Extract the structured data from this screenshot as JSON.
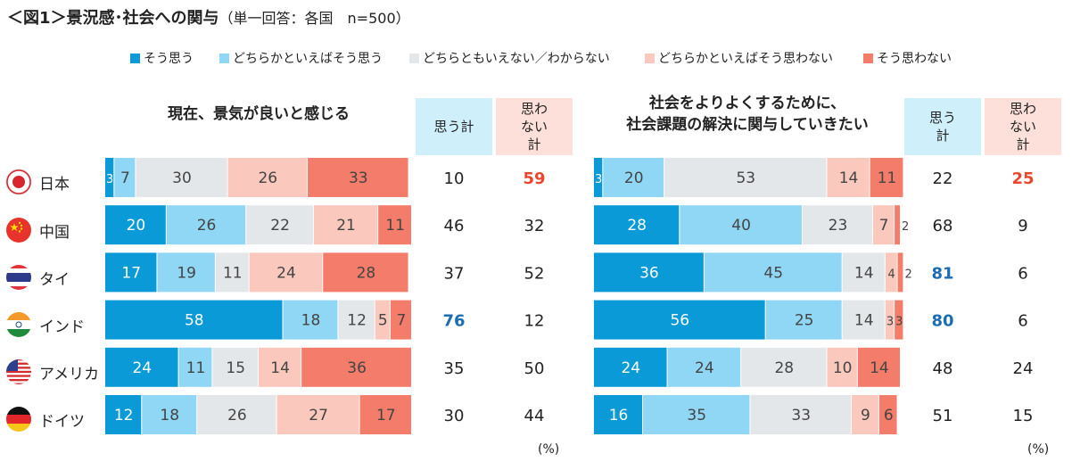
{
  "title": "＜図1＞景況感･社会への関与",
  "subtitle": "（単一回答：各国　n=500）",
  "legend": [
    {
      "label": "そう思う",
      "color": "#0b9ad8"
    },
    {
      "label": "どちらかといえばそう思う",
      "color": "#8fd7f5"
    },
    {
      "label": "どちらともいえない／わからない",
      "color": "#e4e7ea"
    },
    {
      "label": "どちらかといえばそう思わない",
      "color": "#fbc8bd"
    },
    {
      "label": "そう思わない",
      "color": "#f47c6a"
    }
  ],
  "headers": {
    "agree_total": "思う計",
    "disagree_total": "思わない計"
  },
  "unit": "(%)",
  "countries": [
    "日本",
    "中国",
    "タイ",
    "インド",
    "アメリカ",
    "ドイツ"
  ],
  "chart_data": [
    {
      "type": "bar",
      "stacked": true,
      "orientation": "horizontal",
      "title": "現在、景気が良いと感じる",
      "categories": [
        "日本",
        "中国",
        "タイ",
        "インド",
        "アメリカ",
        "ドイツ"
      ],
      "series": [
        {
          "name": "そう思う",
          "values": [
            3,
            20,
            17,
            58,
            24,
            12
          ]
        },
        {
          "name": "どちらかといえばそう思う",
          "values": [
            7,
            26,
            19,
            18,
            11,
            18
          ]
        },
        {
          "name": "どちらともいえない／わからない",
          "values": [
            30,
            22,
            11,
            12,
            15,
            26
          ]
        },
        {
          "name": "どちらかといえばそう思わない",
          "values": [
            26,
            21,
            24,
            5,
            14,
            27
          ]
        },
        {
          "name": "そう思わない",
          "values": [
            33,
            11,
            28,
            7,
            36,
            17
          ]
        }
      ],
      "agree_total": [
        10,
        46,
        37,
        76,
        35,
        30
      ],
      "disagree_total": [
        59,
        32,
        52,
        12,
        50,
        44
      ],
      "highlight_agree": [
        false,
        false,
        false,
        true,
        false,
        false
      ],
      "highlight_disagree": [
        true,
        false,
        false,
        false,
        false,
        false
      ]
    },
    {
      "type": "bar",
      "stacked": true,
      "orientation": "horizontal",
      "title": "社会をよりよくするために、\n社会課題の解決に関与していきたい",
      "categories": [
        "日本",
        "中国",
        "タイ",
        "インド",
        "アメリカ",
        "ドイツ"
      ],
      "series": [
        {
          "name": "そう思う",
          "values": [
            3,
            28,
            36,
            56,
            24,
            16
          ]
        },
        {
          "name": "どちらかといえばそう思う",
          "values": [
            20,
            40,
            45,
            25,
            24,
            35
          ]
        },
        {
          "name": "どちらともいえない／わからない",
          "values": [
            53,
            23,
            14,
            14,
            28,
            33
          ]
        },
        {
          "name": "どちらかといえばそう思わない",
          "values": [
            14,
            7,
            4,
            3,
            10,
            9
          ]
        },
        {
          "name": "そう思わない",
          "values": [
            11,
            2,
            2,
            3,
            14,
            6
          ]
        }
      ],
      "agree_total": [
        22,
        68,
        81,
        80,
        48,
        51
      ],
      "disagree_total": [
        25,
        9,
        6,
        6,
        24,
        15
      ],
      "highlight_agree": [
        false,
        false,
        true,
        true,
        false,
        false
      ],
      "highlight_disagree": [
        true,
        false,
        false,
        false,
        false,
        false
      ]
    }
  ]
}
